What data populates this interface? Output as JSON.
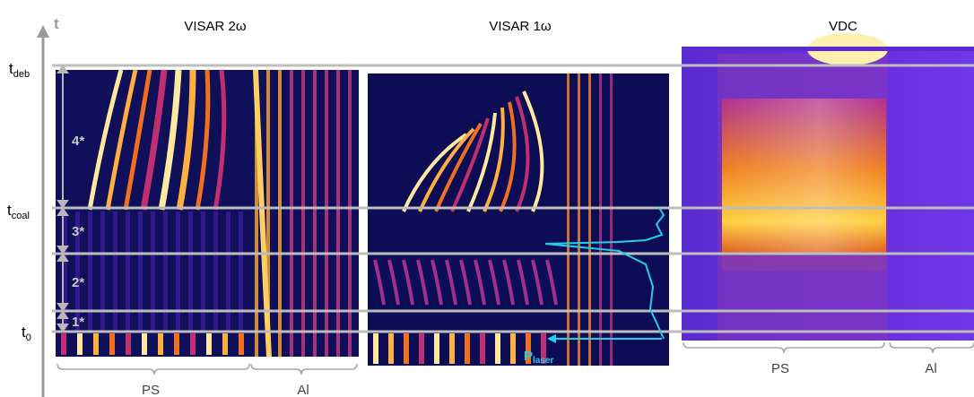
{
  "axis_label": "t",
  "time_labels": [
    {
      "main": "t",
      "sub": "deb"
    },
    {
      "main": "t",
      "sub": "coal"
    },
    {
      "main": "t",
      "sub": "0"
    }
  ],
  "panels": [
    {
      "title": "VISAR 2ω",
      "regions": [
        "PS",
        "Al"
      ]
    },
    {
      "title": "VISAR 1ω"
    },
    {
      "title": "VDC",
      "regions": [
        "PS",
        "Al"
      ]
    }
  ],
  "phases": [
    "4*",
    "3*",
    "2*",
    "1*"
  ],
  "laser_label": {
    "main": "P",
    "sub": "laser"
  }
}
